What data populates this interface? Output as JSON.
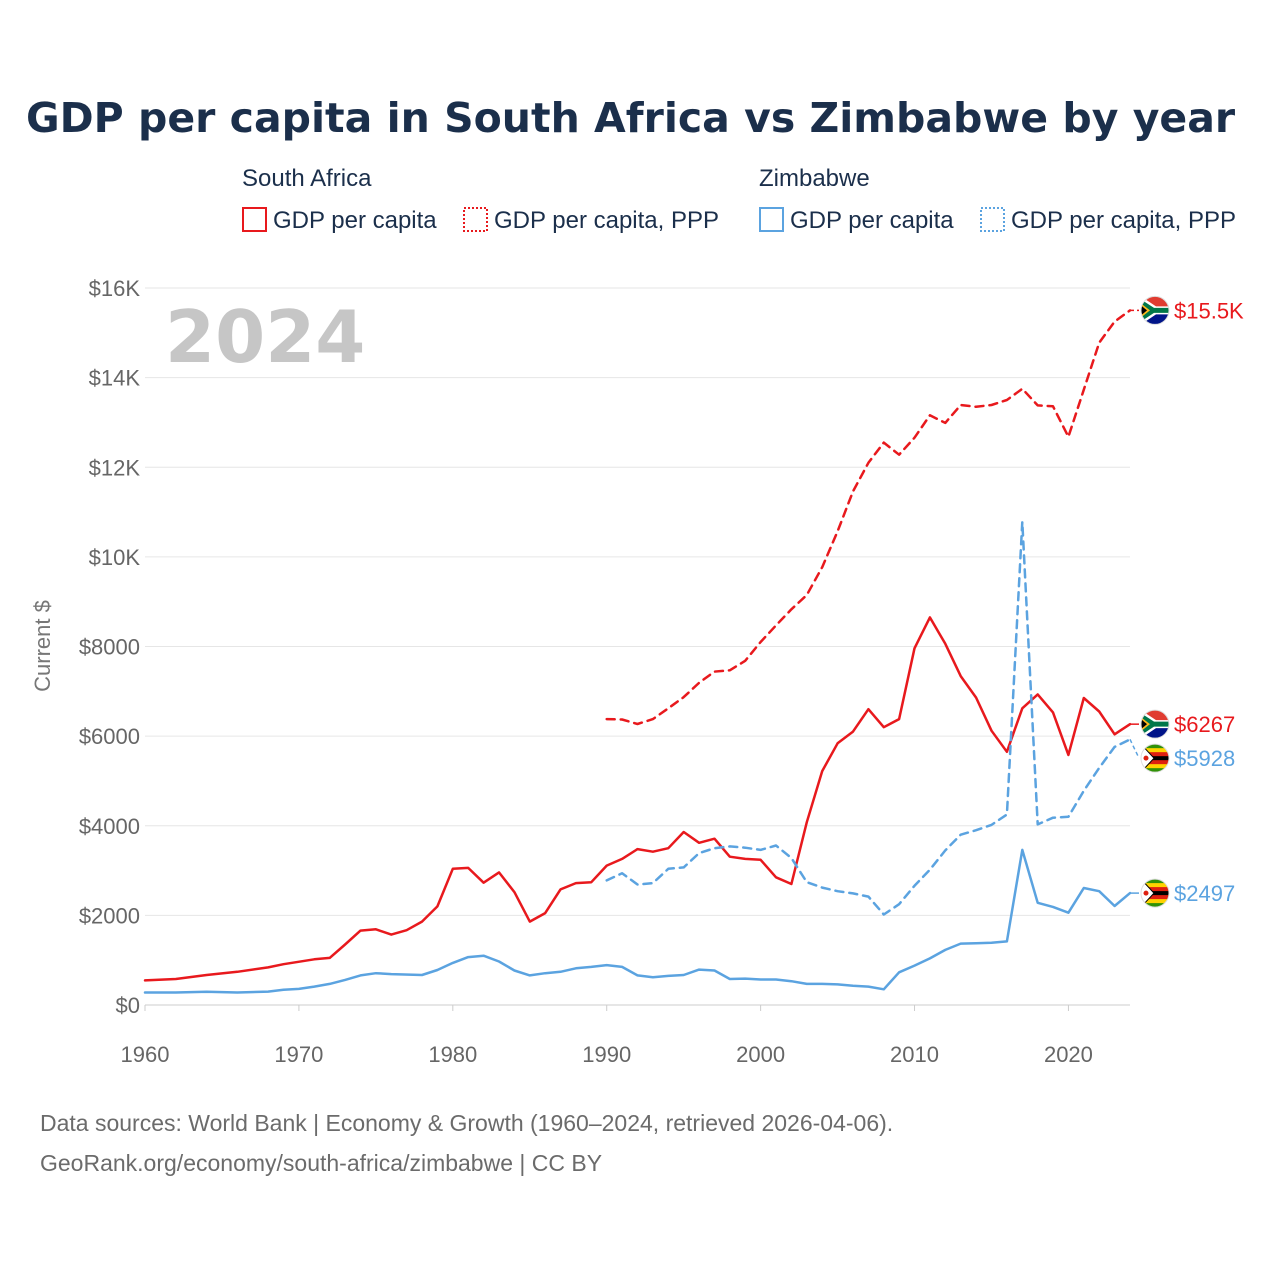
{
  "title": "GDP per capita in South Africa vs Zimbabwe by year",
  "legend": {
    "groups": [
      {
        "name": "South Africa",
        "entries": [
          "GDP per capita",
          "GDP per capita, PPP"
        ],
        "color": "#e8191d"
      },
      {
        "name": "Zimbabwe",
        "entries": [
          "GDP per capita",
          "GDP per capita, PPP"
        ],
        "color": "#5ba3e0"
      }
    ]
  },
  "year_watermark": "2024",
  "footer": {
    "line1": "Data sources: World Bank | Economy & Growth (1960–2024, retrieved 2026-04-06).",
    "line2": "GeoRank.org/economy/south-africa/zimbabwe | CC BY"
  },
  "chart_data": {
    "type": "line",
    "title": "GDP per capita in South Africa vs Zimbabwe by year",
    "xlabel": "",
    "ylabel": "Current $",
    "xlim": [
      1960,
      2024
    ],
    "ylim": [
      0,
      16000
    ],
    "x_ticks": [
      1960,
      1970,
      1980,
      1990,
      2000,
      2010,
      2020
    ],
    "y_ticks": [
      0,
      2000,
      4000,
      6000,
      8000,
      10000,
      12000,
      14000,
      16000
    ],
    "y_tick_labels": [
      "$0",
      "$2000",
      "$4000",
      "$6000",
      "$8000",
      "$10K",
      "$12K",
      "$14K",
      "$16K"
    ],
    "series": [
      {
        "name": "South Africa GDP per capita",
        "color": "#e8191d",
        "dash": "solid",
        "flag": "south-africa",
        "end_label": "$6267",
        "x": [
          1960,
          1962,
          1964,
          1966,
          1968,
          1969,
          1971,
          1972,
          1973,
          1974,
          1975,
          1976,
          1977,
          1978,
          1979,
          1980,
          1981,
          1982,
          1983,
          1984,
          1985,
          1986,
          1987,
          1988,
          1989,
          1990,
          1991,
          1992,
          1993,
          1994,
          1995,
          1996,
          1997,
          1998,
          1999,
          2000,
          2001,
          2002,
          2003,
          2004,
          2005,
          2006,
          2007,
          2008,
          2009,
          2010,
          2011,
          2012,
          2013,
          2014,
          2015,
          2016,
          2017,
          2018,
          2019,
          2020,
          2021,
          2022,
          2023,
          2024
        ],
        "y": [
          550,
          580,
          670,
          740,
          840,
          910,
          1020,
          1050,
          1350,
          1660,
          1690,
          1570,
          1670,
          1860,
          2200,
          3040,
          3060,
          2730,
          2960,
          2520,
          1860,
          2050,
          2580,
          2720,
          2740,
          3110,
          3260,
          3480,
          3420,
          3500,
          3860,
          3620,
          3710,
          3310,
          3260,
          3240,
          2850,
          2700,
          4080,
          5220,
          5840,
          6100,
          6600,
          6200,
          6380,
          7960,
          8650,
          8060,
          7340,
          6860,
          6120,
          5650,
          6620,
          6930,
          6530,
          5580,
          6850,
          6550,
          6040,
          6267
        ]
      },
      {
        "name": "South Africa GDP per capita, PPP",
        "color": "#e8191d",
        "dash": "dashed",
        "flag": "south-africa",
        "end_label": "$15.5K",
        "x": [
          1990,
          1991,
          1992,
          1993,
          1994,
          1995,
          1996,
          1997,
          1998,
          1999,
          2000,
          2001,
          2002,
          2003,
          2004,
          2005,
          2006,
          2007,
          2008,
          2009,
          2010,
          2011,
          2012,
          2013,
          2014,
          2015,
          2016,
          2017,
          2018,
          2019,
          2020,
          2021,
          2022,
          2023,
          2024
        ],
        "y": [
          6380,
          6370,
          6270,
          6380,
          6620,
          6870,
          7190,
          7440,
          7470,
          7680,
          8100,
          8470,
          8830,
          9150,
          9770,
          10570,
          11460,
          12100,
          12550,
          12280,
          12660,
          13160,
          12990,
          13390,
          13350,
          13390,
          13500,
          13750,
          13380,
          13360,
          12680,
          13730,
          14780,
          15250,
          15500
        ]
      },
      {
        "name": "Zimbabwe GDP per capita",
        "color": "#5ba3e0",
        "dash": "solid",
        "flag": "zimbabwe",
        "end_label": "$2497",
        "x": [
          1960,
          1962,
          1964,
          1966,
          1968,
          1969,
          1970,
          1971,
          1972,
          1973,
          1974,
          1975,
          1976,
          1978,
          1979,
          1980,
          1981,
          1982,
          1983,
          1984,
          1985,
          1986,
          1987,
          1988,
          1989,
          1990,
          1991,
          1992,
          1993,
          1994,
          1995,
          1996,
          1997,
          1998,
          1999,
          2000,
          2001,
          2002,
          2003,
          2004,
          2005,
          2006,
          2007,
          2008,
          2009,
          2010,
          2011,
          2012,
          2013,
          2014,
          2015,
          2016,
          2017,
          2018,
          2019,
          2020,
          2021,
          2022,
          2023,
          2024
        ],
        "y": [
          280,
          280,
          295,
          280,
          300,
          340,
          360,
          410,
          470,
          560,
          660,
          710,
          690,
          670,
          780,
          940,
          1070,
          1100,
          970,
          770,
          660,
          710,
          740,
          820,
          850,
          890,
          850,
          660,
          620,
          650,
          670,
          790,
          770,
          580,
          590,
          570,
          570,
          530,
          470,
          470,
          460,
          430,
          410,
          350,
          730,
          880,
          1040,
          1230,
          1370,
          1380,
          1390,
          1420,
          3460,
          2280,
          2190,
          2060,
          2610,
          2540,
          2210,
          2497
        ]
      },
      {
        "name": "Zimbabwe GDP per capita, PPP",
        "color": "#5ba3e0",
        "dash": "dashed",
        "flag": "zimbabwe",
        "end_label": "$5928",
        "x": [
          1990,
          1991,
          1992,
          1993,
          1994,
          1995,
          1996,
          1997,
          1998,
          1999,
          2000,
          2001,
          2002,
          2003,
          2004,
          2005,
          2006,
          2007,
          2008,
          2009,
          2010,
          2011,
          2012,
          2013,
          2014,
          2015,
          2016,
          2017,
          2018,
          2019,
          2020,
          2021,
          2022,
          2023,
          2024
        ],
        "y": [
          2780,
          2940,
          2690,
          2720,
          3040,
          3070,
          3390,
          3500,
          3540,
          3510,
          3460,
          3560,
          3280,
          2740,
          2620,
          2540,
          2490,
          2420,
          2020,
          2250,
          2660,
          3020,
          3450,
          3800,
          3900,
          4020,
          4250,
          10780,
          4030,
          4180,
          4200,
          4780,
          5290,
          5760,
          5928
        ]
      }
    ]
  }
}
